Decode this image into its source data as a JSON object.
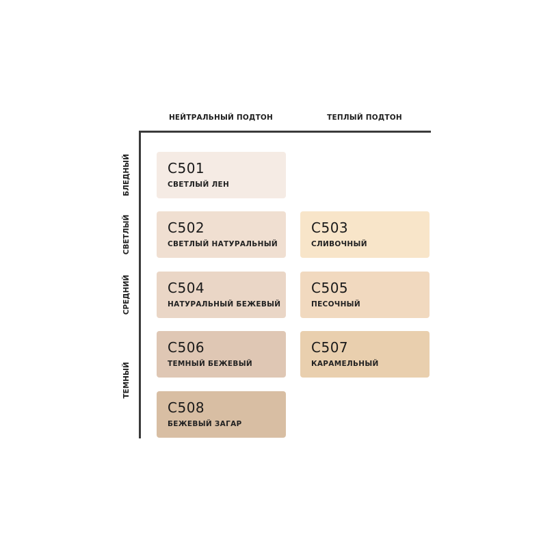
{
  "columns": [
    "НЕЙТРАЛЬНЫЙ ПОДТОН",
    "ТЕПЛЫЙ ПОДТОН"
  ],
  "rows": [
    "БЛЕДНЫЙ",
    "СВЕТЛЫЙ",
    "СРЕДНИЙ",
    "ТЕМНЫЙ"
  ],
  "shades": [
    {
      "code": "C501",
      "name": "СВЕТЛЫЙ ЛЕН",
      "color": "#f5ebe4",
      "column": "НЕЙТРАЛЬНЫЙ ПОДТОН",
      "row": "БЛЕДНЫЙ"
    },
    {
      "code": "C502",
      "name": "СВЕТЛЫЙ НАТУРАЛЬНЫЙ",
      "color": "#f0dfd1",
      "column": "НЕЙТРАЛЬНЫЙ ПОДТОН",
      "row": "СВЕТЛЫЙ"
    },
    {
      "code": "C503",
      "name": "СЛИВОЧНЫЙ",
      "color": "#f8e5c9",
      "column": "ТЕПЛЫЙ ПОДТОН",
      "row": "СВЕТЛЫЙ"
    },
    {
      "code": "C504",
      "name": "НАТУРАЛЬНЫЙ БЕЖЕВЫЙ",
      "color": "#ead6c6",
      "column": "НЕЙТРАЛЬНЫЙ ПОДТОН",
      "row": "СРЕДНИЙ"
    },
    {
      "code": "C505",
      "name": "ПЕСОЧНЫЙ",
      "color": "#f1d9bf",
      "column": "ТЕПЛЫЙ ПОДТОН",
      "row": "СРЕДНИЙ"
    },
    {
      "code": "C506",
      "name": "ТЕМНЫЙ БЕЖЕВЫЙ",
      "color": "#dfc7b4",
      "column": "НЕЙТРАЛЬНЫЙ ПОДТОН",
      "row": "ТЕМНЫЙ"
    },
    {
      "code": "C507",
      "name": "КАРАМЕЛЬНЫЙ",
      "color": "#e9cfae",
      "column": "ТЕПЛЫЙ ПОДТОН",
      "row": "ТЕМНЫЙ"
    },
    {
      "code": "C508",
      "name": "БЕЖЕВЫЙ ЗАГАР",
      "color": "#d8bea3",
      "column": "НЕЙТРАЛЬНЫЙ ПОДТОН",
      "row": "ТЕМНЫЙ"
    }
  ]
}
